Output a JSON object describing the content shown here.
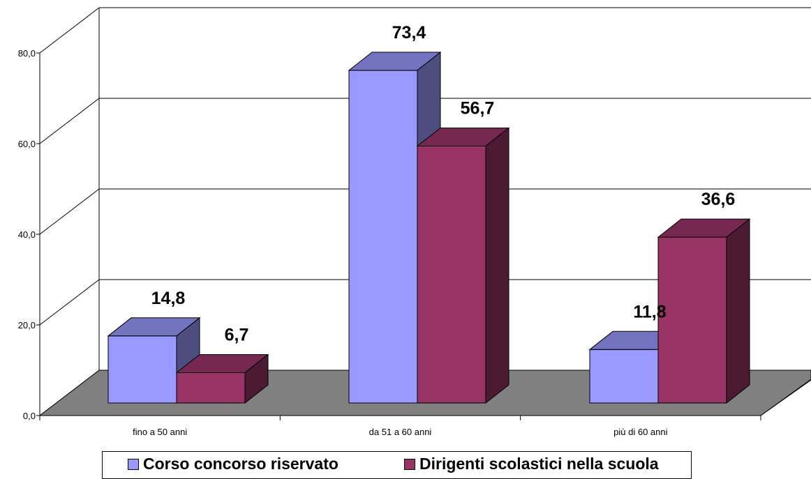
{
  "chart_data": {
    "type": "bar",
    "categories": [
      "fino a  50 anni",
      "da 51 a 60 anni",
      "più di 60 anni"
    ],
    "series": [
      {
        "name": "Corso  concorso riservato",
        "values": [
          14.8,
          73.4,
          11.8
        ],
        "labels": [
          "14,8",
          "73,4",
          "11,8"
        ],
        "color": "#9999ff"
      },
      {
        "name": "Dirigenti scolastici nella scuola",
        "values": [
          6.7,
          56.7,
          36.6
        ],
        "labels": [
          "6,7",
          "56,7",
          "36,6"
        ],
        "color": "#993366"
      }
    ],
    "yticks": [
      "0,0",
      "20,0",
      "40,0",
      "60,0",
      "80,0"
    ],
    "ylim": [
      0,
      80
    ],
    "grid": true,
    "legend_position": "bottom",
    "three_d": true,
    "floor_color": "#808080"
  }
}
